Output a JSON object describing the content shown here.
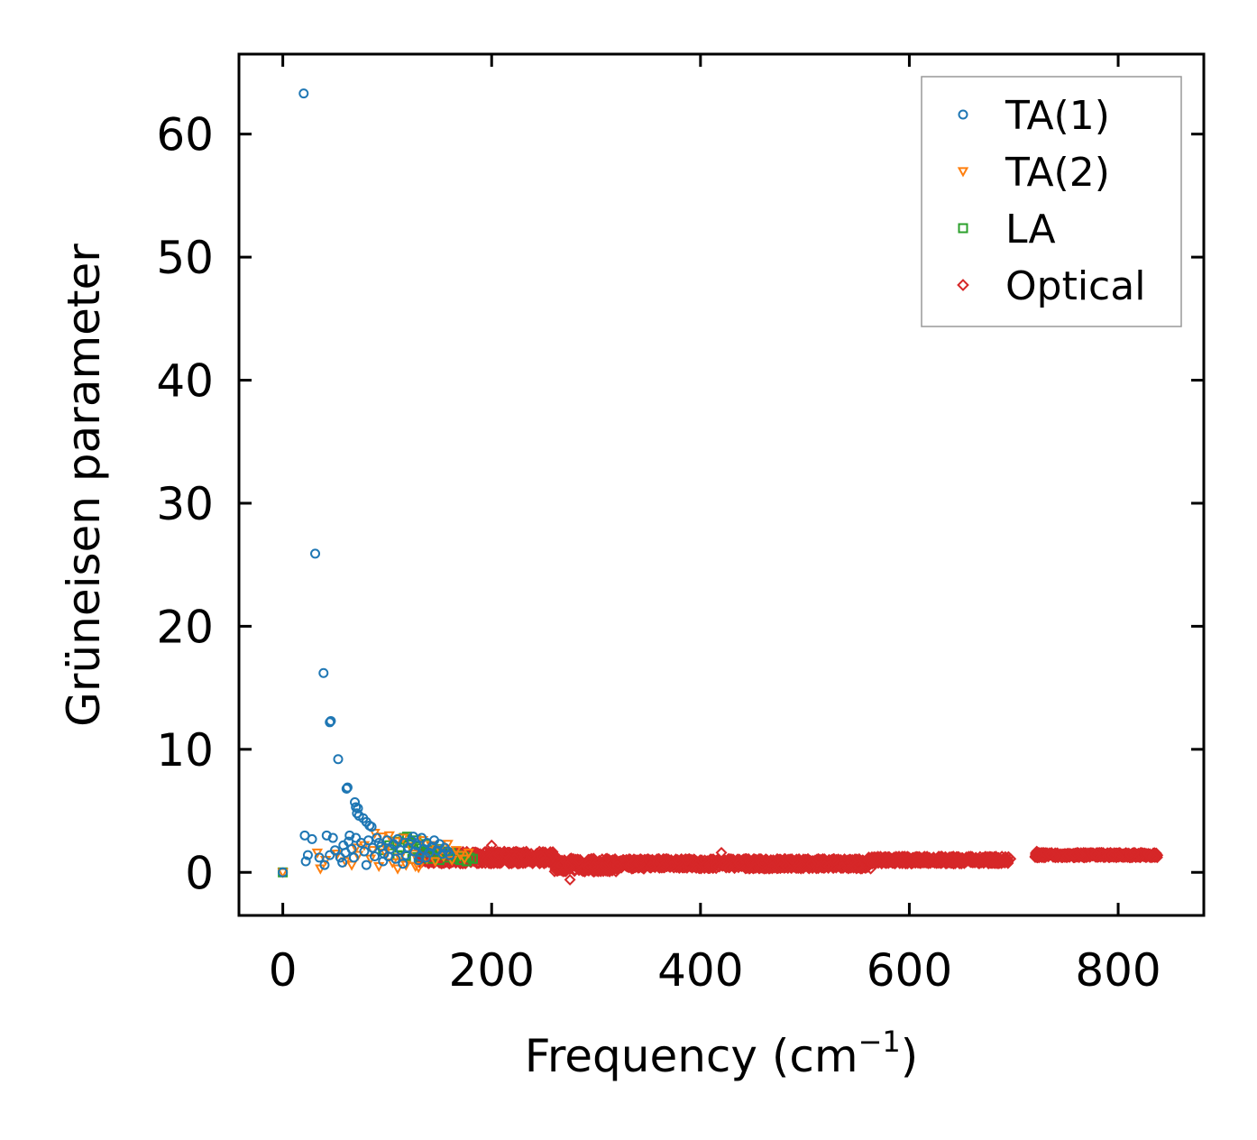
{
  "chart_data": {
    "type": "scatter",
    "title": "",
    "xlabel": "Frequency (cm",
    "xlabel_sup": "−1",
    "xlabel_close": ")",
    "ylabel": "Grüneisen parameter",
    "xlim": [
      -42,
      882
    ],
    "ylim": [
      -3.5,
      66.5
    ],
    "xticks": [
      0,
      200,
      400,
      600,
      800
    ],
    "yticks": [
      0,
      10,
      20,
      30,
      40,
      50,
      60
    ],
    "xtick_labels": [
      "0",
      "200",
      "400",
      "600",
      "800"
    ],
    "ytick_labels": [
      "0",
      "10",
      "20",
      "30",
      "40",
      "50",
      "60"
    ],
    "legend_position": "top-right",
    "series": [
      {
        "name": "TA(1)",
        "marker": "circle",
        "color": "#1f77b4",
        "points": [
          [
            0,
            0
          ],
          [
            20,
            63.3
          ],
          [
            31,
            25.9
          ],
          [
            39,
            16.2
          ],
          [
            45,
            12.2
          ],
          [
            46,
            12.3
          ],
          [
            53,
            9.2
          ],
          [
            61,
            6.8
          ],
          [
            62,
            6.9
          ],
          [
            69,
            5.7
          ],
          [
            70,
            5.3
          ],
          [
            72,
            5.2
          ],
          [
            71,
            4.8
          ],
          [
            73,
            4.6
          ],
          [
            77,
            4.4
          ],
          [
            80,
            4.1
          ],
          [
            83,
            3.8
          ],
          [
            85,
            3.7
          ],
          [
            21,
            3.0
          ],
          [
            28,
            2.7
          ],
          [
            42,
            3.0
          ],
          [
            48,
            2.8
          ],
          [
            64,
            3.0
          ],
          [
            70,
            2.8
          ],
          [
            24,
            1.4
          ],
          [
            22,
            0.9
          ],
          [
            35,
            1.2
          ],
          [
            40,
            0.6
          ],
          [
            45,
            1.4
          ],
          [
            50,
            1.8
          ],
          [
            55,
            1.2
          ],
          [
            58,
            2.2
          ],
          [
            60,
            1.6
          ],
          [
            63,
            2.5
          ],
          [
            66,
            1.9
          ],
          [
            68,
            1.2
          ],
          [
            75,
            2.4
          ],
          [
            78,
            1.7
          ],
          [
            82,
            2.6
          ],
          [
            86,
            2.0
          ],
          [
            88,
            1.3
          ],
          [
            90,
            2.8
          ],
          [
            94,
            2.1
          ],
          [
            97,
            1.5
          ],
          [
            100,
            2.6
          ],
          [
            103,
            1.9
          ],
          [
            106,
            2.3
          ],
          [
            108,
            1.1
          ],
          [
            110,
            2.7
          ],
          [
            113,
            1.8
          ],
          [
            116,
            2.4
          ],
          [
            118,
            1.4
          ],
          [
            120,
            2.0
          ],
          [
            123,
            2.6
          ],
          [
            126,
            1.7
          ],
          [
            128,
            2.2
          ],
          [
            131,
            1.3
          ],
          [
            133,
            2.8
          ],
          [
            135,
            1.9
          ],
          [
            138,
            2.4
          ],
          [
            140,
            1.6
          ],
          [
            143,
            2.1
          ],
          [
            145,
            2.6
          ],
          [
            148,
            1.8
          ],
          [
            150,
            2.3
          ],
          [
            153,
            1.5
          ],
          [
            155,
            2.0
          ],
          [
            158,
            1.7
          ],
          [
            160,
            1.4
          ],
          [
            57,
            0.8
          ],
          [
            80,
            0.6
          ],
          [
            96,
            0.9
          ],
          [
            115,
            0.7
          ],
          [
            130,
            1.0
          ],
          [
            92,
            2.4
          ],
          [
            101,
            1.3
          ],
          [
            125,
            2.9
          ],
          [
            137,
            1.2
          ]
        ]
      },
      {
        "name": "TA(2)",
        "marker": "triangle-down",
        "color": "#ff7f0e",
        "points": [
          [
            0,
            0
          ],
          [
            33,
            1.6
          ],
          [
            36,
            0.3
          ],
          [
            41,
            1.0
          ],
          [
            52,
            1.5
          ],
          [
            60,
            0.9
          ],
          [
            66,
            0.6
          ],
          [
            72,
            1.4
          ],
          [
            78,
            2.2
          ],
          [
            84,
            1.1
          ],
          [
            88,
            3.2
          ],
          [
            92,
            0.5
          ],
          [
            95,
            2.9
          ],
          [
            98,
            1.6
          ],
          [
            102,
            3.0
          ],
          [
            105,
            0.8
          ],
          [
            109,
            2.5
          ],
          [
            112,
            1.2
          ],
          [
            115,
            2.8
          ],
          [
            118,
            0.6
          ],
          [
            122,
            2.1
          ],
          [
            126,
            1.5
          ],
          [
            130,
            0.4
          ],
          [
            134,
            2.6
          ],
          [
            138,
            1.1
          ],
          [
            142,
            2.2
          ],
          [
            146,
            0.9
          ],
          [
            150,
            1.9
          ],
          [
            154,
            1.3
          ],
          [
            158,
            2.3
          ],
          [
            162,
            1.0
          ],
          [
            166,
            1.8
          ],
          [
            170,
            1.4
          ],
          [
            174,
            1.1
          ],
          [
            178,
            1.6
          ],
          [
            110,
            0.3
          ],
          [
            127,
            0.5
          ],
          [
            99,
            2.0
          ],
          [
            86,
            1.8
          ],
          [
            70,
            2.0
          ]
        ]
      },
      {
        "name": "LA",
        "marker": "square",
        "color": "#2ca02c",
        "points": [
          [
            0,
            0
          ],
          [
            96,
            1.8
          ],
          [
            102,
            2.2
          ],
          [
            108,
            2.5
          ],
          [
            112,
            2.0
          ],
          [
            116,
            2.8
          ],
          [
            119,
            2.9
          ],
          [
            122,
            2.4
          ],
          [
            125,
            1.9
          ],
          [
            128,
            2.6
          ],
          [
            131,
            2.1
          ],
          [
            134,
            1.7
          ],
          [
            137,
            2.3
          ],
          [
            140,
            1.8
          ],
          [
            143,
            2.0
          ],
          [
            146,
            1.5
          ],
          [
            149,
            1.9
          ],
          [
            152,
            1.4
          ],
          [
            155,
            1.7
          ],
          [
            158,
            1.2
          ],
          [
            161,
            1.6
          ],
          [
            164,
            1.1
          ],
          [
            167,
            1.4
          ],
          [
            170,
            1.0
          ],
          [
            173,
            1.3
          ],
          [
            176,
            0.9
          ],
          [
            179,
            1.2
          ],
          [
            182,
            1.1
          ],
          [
            150,
            1.0
          ],
          [
            140,
            1.1
          ],
          [
            118,
            1.3
          ],
          [
            124,
            1.1
          ],
          [
            110,
            1.4
          ]
        ]
      },
      {
        "name": "Optical",
        "marker": "diamond",
        "color": "#d62728",
        "generated": true,
        "segments": [
          {
            "x0": 130,
            "x1": 260,
            "base": 1.2,
            "spread": 1.0
          },
          {
            "x0": 260,
            "x1": 320,
            "base": 0.6,
            "spread": 1.1
          },
          {
            "x0": 320,
            "x1": 560,
            "base": 0.7,
            "spread": 0.8
          },
          {
            "x0": 560,
            "x1": 695,
            "base": 1.0,
            "spread": 0.6
          },
          {
            "x0": 720,
            "x1": 838,
            "base": 1.4,
            "spread": 0.4
          }
        ],
        "points": [
          [
            275,
            -0.6
          ],
          [
            697,
            1.1
          ],
          [
            563,
            0.3
          ],
          [
            722,
            1.7
          ],
          [
            200,
            2.2
          ],
          [
            420,
            1.6
          ]
        ]
      }
    ]
  }
}
